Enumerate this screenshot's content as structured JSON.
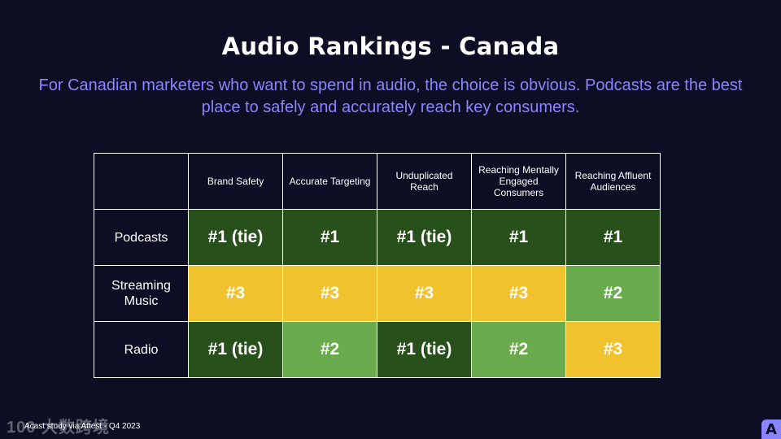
{
  "title": "Audio Rankings - Canada",
  "subtitle": "For Canadian marketers who want to spend in audio, the choice is obvious.  Podcasts are the best place to safely and accurately reach key consumers.",
  "table": {
    "corner": "",
    "columns": [
      "Brand Safety",
      "Accurate Targeting",
      "Unduplicated Reach",
      "Reaching Mentally Engaged Consumers",
      "Reaching Affluent Audiences"
    ],
    "rows": [
      {
        "label": "Podcasts",
        "cells": [
          {
            "text": "#1 (tie)",
            "color": "#27501a"
          },
          {
            "text": "#1",
            "color": "#27501a"
          },
          {
            "text": "#1 (tie)",
            "color": "#27501a"
          },
          {
            "text": "#1",
            "color": "#27501a"
          },
          {
            "text": "#1",
            "color": "#27501a"
          }
        ]
      },
      {
        "label": "Streaming Music",
        "cells": [
          {
            "text": "#3",
            "color": "#efc22e"
          },
          {
            "text": "#3",
            "color": "#efc22e"
          },
          {
            "text": "#3",
            "color": "#efc22e"
          },
          {
            "text": "#3",
            "color": "#efc22e"
          },
          {
            "text": "#2",
            "color": "#6aab4d"
          }
        ]
      },
      {
        "label": "Radio",
        "cells": [
          {
            "text": "#1 (tie)",
            "color": "#27501a"
          },
          {
            "text": "#2",
            "color": "#6aab4d"
          },
          {
            "text": "#1 (tie)",
            "color": "#27501a"
          },
          {
            "text": "#2",
            "color": "#6aab4d"
          },
          {
            "text": "#3",
            "color": "#efc22e"
          }
        ]
      }
    ]
  },
  "footer": "Acast study via Attest - Q4 2023",
  "watermark": "100 大数跨境",
  "logo_letter": "A"
}
